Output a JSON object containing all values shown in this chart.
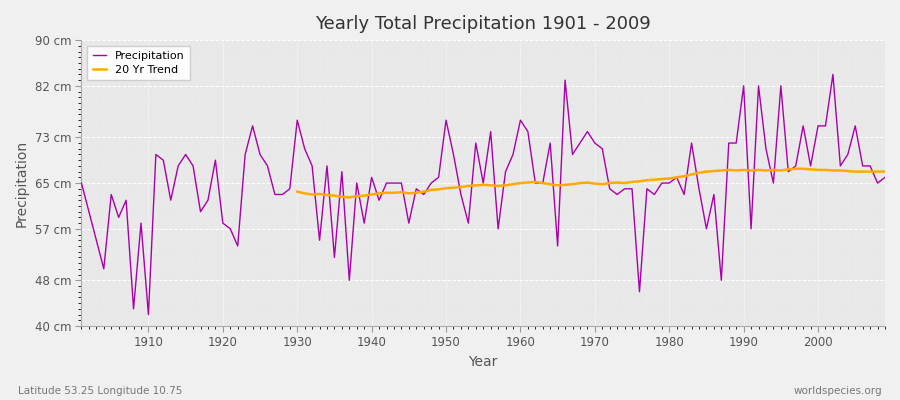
{
  "title": "Yearly Total Precipitation 1901 - 2009",
  "xlabel": "Year",
  "ylabel": "Precipitation",
  "subtitle": "Latitude 53.25 Longitude 10.75",
  "watermark": "worldspecies.org",
  "ylim": [
    40,
    90
  ],
  "yticks": [
    40,
    48,
    57,
    65,
    73,
    82,
    90
  ],
  "ytick_labels": [
    "40 cm",
    "48 cm",
    "57 cm",
    "65 cm",
    "73 cm",
    "82 cm",
    "90 cm"
  ],
  "xlim": [
    1901,
    2009
  ],
  "xticks": [
    1910,
    1920,
    1930,
    1940,
    1950,
    1960,
    1970,
    1980,
    1990,
    2000
  ],
  "fig_bg_color": "#f0f0f0",
  "plot_bg_color": "#e8e8e8",
  "precip_color": "#aa00aa",
  "trend_color": "#ffaa00",
  "precip_linewidth": 1.0,
  "trend_linewidth": 1.8,
  "years": [
    1901,
    1902,
    1903,
    1904,
    1905,
    1906,
    1907,
    1908,
    1909,
    1910,
    1911,
    1912,
    1913,
    1914,
    1915,
    1916,
    1917,
    1918,
    1919,
    1920,
    1921,
    1922,
    1923,
    1924,
    1925,
    1926,
    1927,
    1928,
    1929,
    1930,
    1931,
    1932,
    1933,
    1934,
    1935,
    1936,
    1937,
    1938,
    1939,
    1940,
    1941,
    1942,
    1943,
    1944,
    1945,
    1946,
    1947,
    1948,
    1949,
    1950,
    1951,
    1952,
    1953,
    1954,
    1955,
    1956,
    1957,
    1958,
    1959,
    1960,
    1961,
    1962,
    1963,
    1964,
    1965,
    1966,
    1967,
    1968,
    1969,
    1970,
    1971,
    1972,
    1973,
    1974,
    1975,
    1976,
    1977,
    1978,
    1979,
    1980,
    1981,
    1982,
    1983,
    1984,
    1985,
    1986,
    1987,
    1988,
    1989,
    1990,
    1991,
    1992,
    1993,
    1994,
    1995,
    1996,
    1997,
    1998,
    1999,
    2000,
    2001,
    2002,
    2003,
    2004,
    2005,
    2006,
    2007,
    2008,
    2009
  ],
  "precipitation": [
    65,
    60,
    55,
    50,
    63,
    59,
    62,
    43,
    58,
    42,
    70,
    69,
    62,
    68,
    70,
    68,
    60,
    62,
    69,
    58,
    57,
    54,
    70,
    75,
    70,
    68,
    63,
    63,
    64,
    76,
    71,
    68,
    55,
    68,
    52,
    67,
    48,
    65,
    58,
    66,
    62,
    65,
    65,
    65,
    58,
    64,
    63,
    65,
    66,
    76,
    70,
    63,
    58,
    72,
    65,
    74,
    57,
    67,
    70,
    76,
    74,
    65,
    65,
    72,
    54,
    83,
    70,
    72,
    74,
    72,
    71,
    64,
    63,
    64,
    64,
    46,
    64,
    63,
    65,
    65,
    66,
    63,
    72,
    64,
    57,
    63,
    48,
    72,
    72,
    82,
    57,
    82,
    71,
    65,
    82,
    67,
    68,
    75,
    68,
    75,
    75,
    84,
    68,
    70,
    75,
    68,
    68,
    65,
    66
  ],
  "trend_years": [
    1930,
    1931,
    1932,
    1933,
    1934,
    1935,
    1936,
    1937,
    1938,
    1939,
    1940,
    1941,
    1942,
    1943,
    1944,
    1945,
    1946,
    1947,
    1948,
    1949,
    1950,
    1951,
    1952,
    1953,
    1954,
    1955,
    1956,
    1957,
    1958,
    1959,
    1960,
    1961,
    1962,
    1963,
    1964,
    1965,
    1966,
    1967,
    1968,
    1969,
    1970,
    1971,
    1972,
    1973,
    1974,
    1975,
    1976,
    1977,
    1978,
    1979,
    1980,
    1981,
    1982,
    1983,
    1984,
    1985,
    1986,
    1987,
    1988,
    1989,
    1990,
    1991,
    1992,
    1993,
    1994,
    1995,
    1996,
    1997,
    1998,
    1999,
    2000,
    2001,
    2002,
    2003,
    2004,
    2005,
    2006,
    2007,
    2008,
    2009
  ],
  "trend": [
    63.5,
    63.2,
    63.0,
    63.1,
    62.9,
    62.8,
    62.6,
    62.5,
    62.7,
    62.8,
    63.0,
    63.2,
    63.3,
    63.3,
    63.4,
    63.2,
    63.3,
    63.5,
    63.8,
    63.9,
    64.1,
    64.2,
    64.3,
    64.5,
    64.6,
    64.7,
    64.6,
    64.5,
    64.6,
    64.8,
    65.0,
    65.1,
    65.2,
    65.0,
    64.8,
    64.6,
    64.7,
    64.8,
    65.0,
    65.1,
    64.9,
    64.8,
    65.0,
    65.1,
    65.0,
    65.2,
    65.3,
    65.5,
    65.6,
    65.7,
    65.8,
    66.0,
    66.2,
    66.5,
    66.8,
    67.0,
    67.1,
    67.2,
    67.3,
    67.2,
    67.3,
    67.2,
    67.3,
    67.2,
    67.3,
    67.2,
    67.4,
    67.5,
    67.5,
    67.4,
    67.3,
    67.3,
    67.2,
    67.2,
    67.1,
    67.0,
    67.0,
    67.0,
    67.0,
    67.0
  ]
}
